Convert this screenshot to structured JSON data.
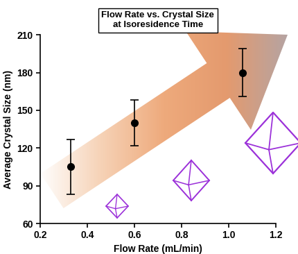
{
  "chart_data": {
    "type": "scatter",
    "title": "Flow Rate vs. Crystal Size\nat Isoresidence Time",
    "x_label": "Flow Rate (mL/min)",
    "y_label": "Average Crystal Size (nm)",
    "x": [
      0.33,
      0.6,
      1.06
    ],
    "values": [
      105,
      140,
      180
    ],
    "error": [
      22,
      18,
      19
    ],
    "color": "#000000",
    "marker": "circle",
    "xlim": [
      0.2,
      1.2
    ],
    "xticks": [
      0.2,
      0.4,
      0.6,
      0.8,
      1.0,
      1.2
    ],
    "ylim": [
      60,
      210
    ],
    "yticks": [
      60,
      90,
      120,
      150,
      180,
      210
    ],
    "grid": false
  }
}
